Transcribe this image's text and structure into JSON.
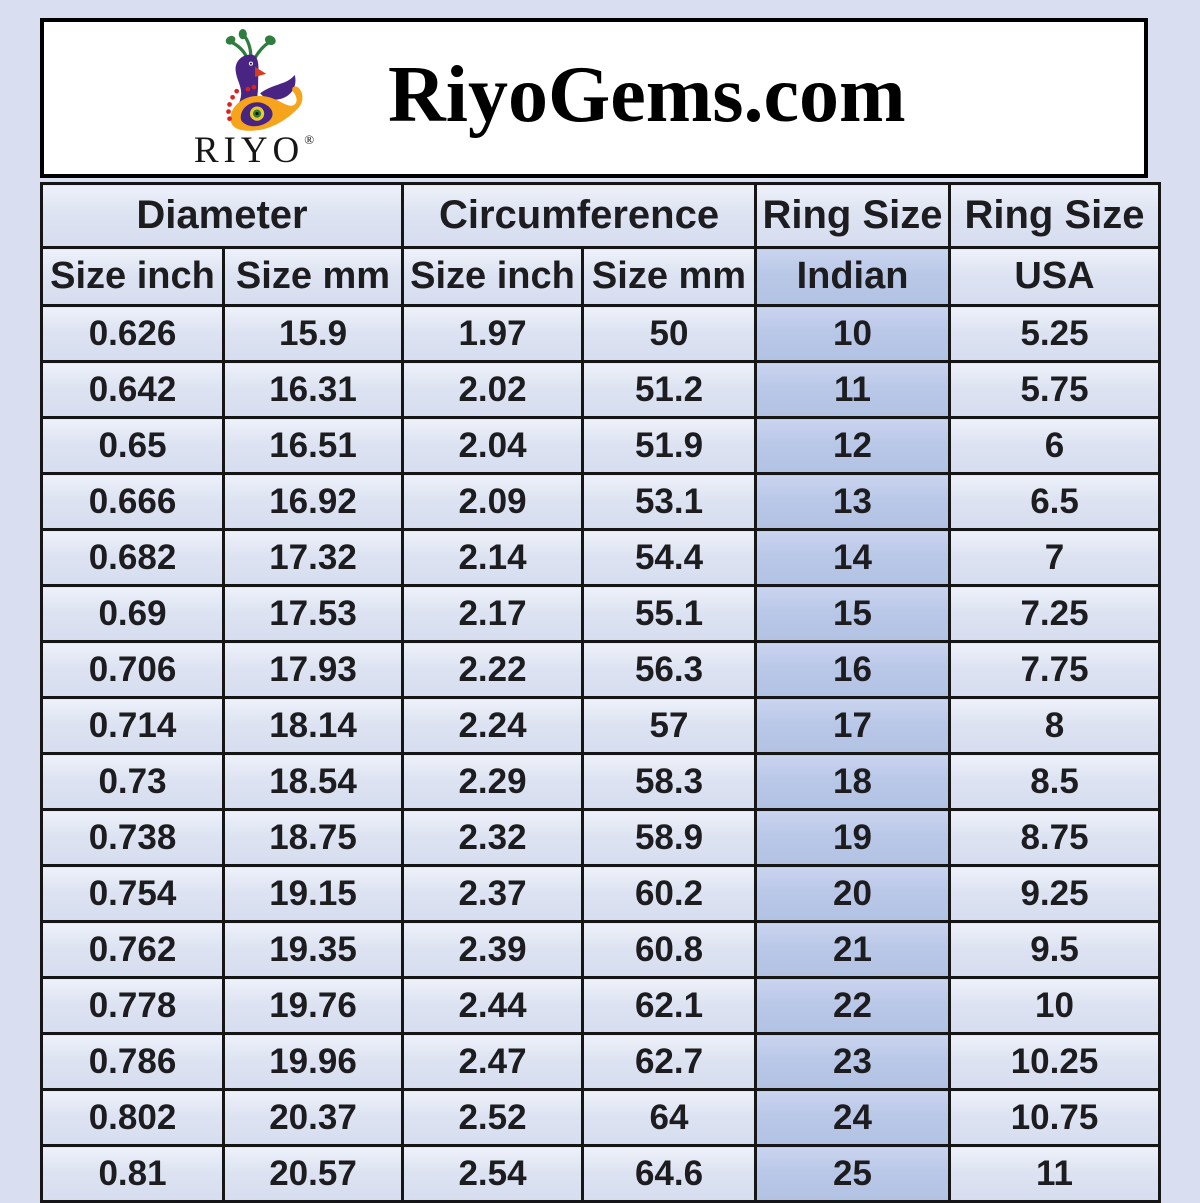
{
  "header": {
    "site_title": "RiyoGems.com",
    "logo": {
      "brand": "RIYO",
      "registered_mark": "®"
    }
  },
  "chart_data": {
    "type": "table",
    "title": "RiyoGems.com",
    "group_headers": [
      {
        "label": "Diameter",
        "span": 2
      },
      {
        "label": "Circumference",
        "span": 2
      },
      {
        "label": "Ring Size",
        "span": 1
      },
      {
        "label": "Ring Size",
        "span": 1
      }
    ],
    "sub_headers": [
      "Size inch",
      "Size mm",
      "Size inch",
      "Size mm",
      "Indian",
      "USA"
    ],
    "highlight_column_index": 4,
    "rows": [
      [
        "0.626",
        "15.9",
        "1.97",
        "50",
        "10",
        "5.25"
      ],
      [
        "0.642",
        "16.31",
        "2.02",
        "51.2",
        "11",
        "5.75"
      ],
      [
        "0.65",
        "16.51",
        "2.04",
        "51.9",
        "12",
        "6"
      ],
      [
        "0.666",
        "16.92",
        "2.09",
        "53.1",
        "13",
        "6.5"
      ],
      [
        "0.682",
        "17.32",
        "2.14",
        "54.4",
        "14",
        "7"
      ],
      [
        "0.69",
        "17.53",
        "2.17",
        "55.1",
        "15",
        "7.25"
      ],
      [
        "0.706",
        "17.93",
        "2.22",
        "56.3",
        "16",
        "7.75"
      ],
      [
        "0.714",
        "18.14",
        "2.24",
        "57",
        "17",
        "8"
      ],
      [
        "0.73",
        "18.54",
        "2.29",
        "58.3",
        "18",
        "8.5"
      ],
      [
        "0.738",
        "18.75",
        "2.32",
        "58.9",
        "19",
        "8.75"
      ],
      [
        "0.754",
        "19.15",
        "2.37",
        "60.2",
        "20",
        "9.25"
      ],
      [
        "0.762",
        "19.35",
        "2.39",
        "60.8",
        "21",
        "9.5"
      ],
      [
        "0.778",
        "19.76",
        "2.44",
        "62.1",
        "22",
        "10"
      ],
      [
        "0.786",
        "19.96",
        "2.47",
        "62.7",
        "23",
        "10.25"
      ],
      [
        "0.802",
        "20.37",
        "2.52",
        "64",
        "24",
        "10.75"
      ],
      [
        "0.81",
        "20.57",
        "2.54",
        "64.6",
        "25",
        "11"
      ]
    ]
  },
  "colors": {
    "page_background": "#d9dff1",
    "cell_light_top": "#eef1f9",
    "cell_light_bottom": "#d6ddef",
    "indian_column_top": "#c9d4ee",
    "indian_column_bottom": "#b2c2e3",
    "table_border": "#161616",
    "text": "#1d1d20",
    "logo_purple": "#4a2482",
    "logo_green": "#2f7d3f",
    "logo_orange": "#f6a41c",
    "logo_red": "#e01f1f",
    "logo_yellow": "#e9cc2c",
    "beak_red": "#d63c1e"
  }
}
